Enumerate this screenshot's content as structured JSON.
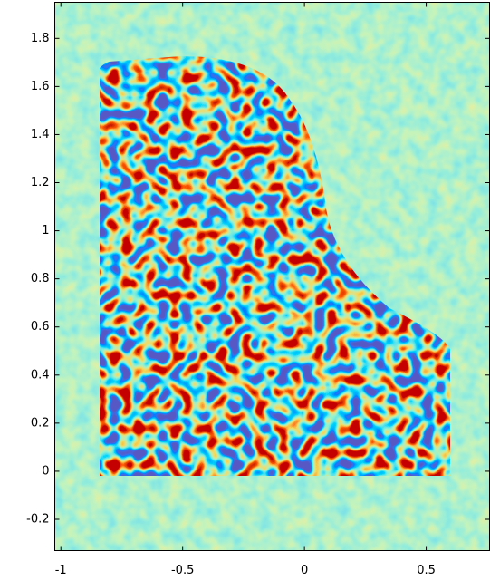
{
  "chart_data": {
    "type": "image",
    "xlim": [
      -1.025,
      0.76
    ],
    "ylim": [
      -0.33,
      1.95
    ],
    "xticks": [
      -1,
      -0.5,
      0,
      0.5
    ],
    "yticks": [
      -0.2,
      0,
      0.2,
      0.4,
      0.6,
      0.8,
      1,
      1.2,
      1.4,
      1.6,
      1.8
    ]
  }
}
